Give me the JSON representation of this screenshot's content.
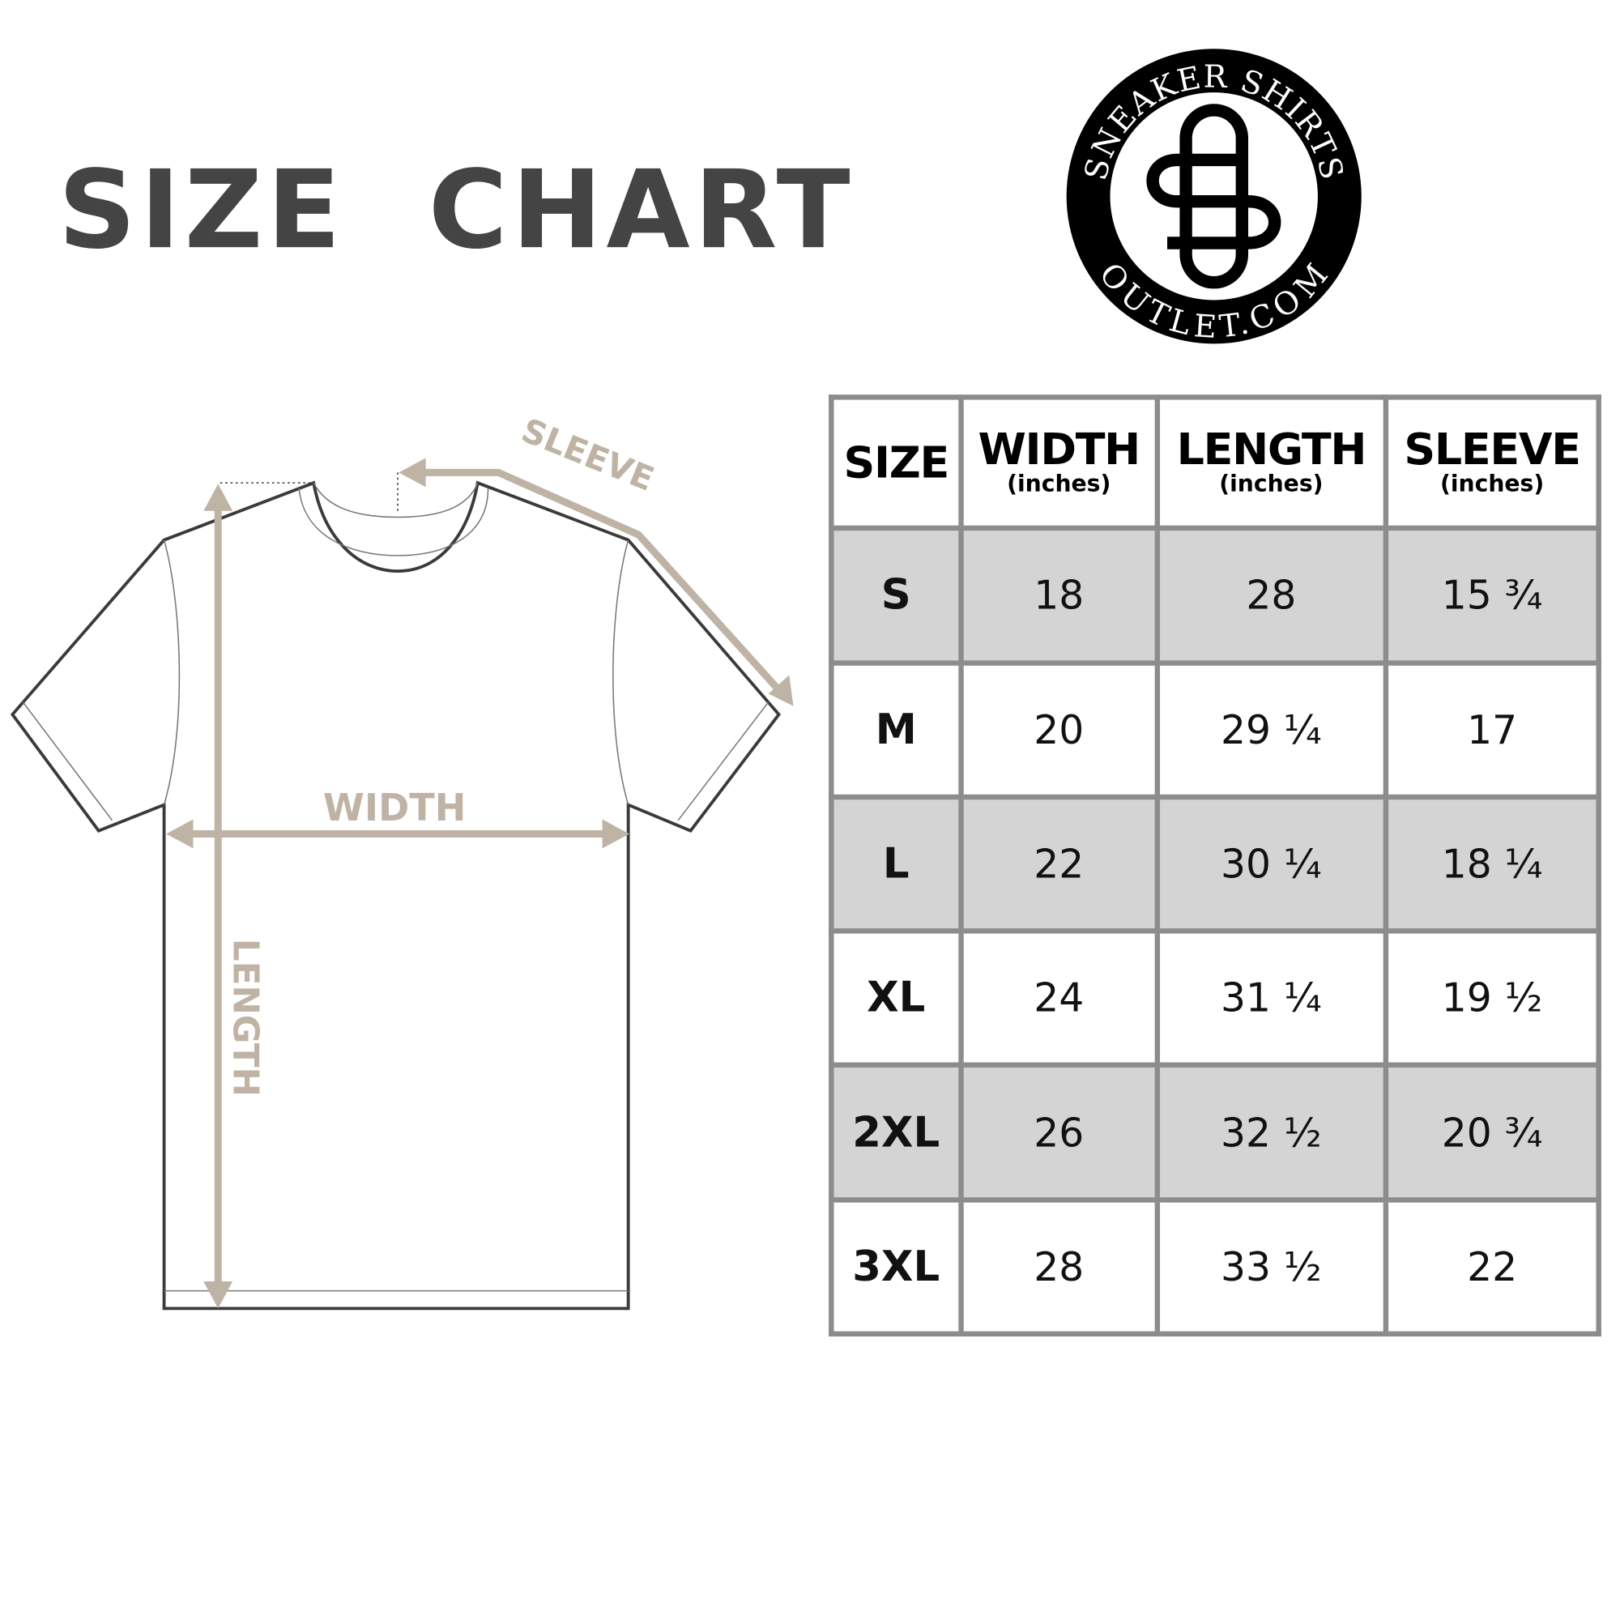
{
  "title": "SIZE  CHART",
  "logo": {
    "top_text": "SNEAKER SHIRTS",
    "bottom_text": "OUTLET.COM",
    "monogram": "SO"
  },
  "diagram": {
    "width_label": "WIDTH",
    "length_label": "LENGTH",
    "sleeve_label": "SLEEVE",
    "arrow_color": "#bfb3a5"
  },
  "table": {
    "headers": [
      {
        "label": "SIZE",
        "unit": ""
      },
      {
        "label": "WIDTH",
        "unit": "(inches)"
      },
      {
        "label": "LENGTH",
        "unit": "(inches)"
      },
      {
        "label": "SLEEVE",
        "unit": "(inches)"
      }
    ],
    "rows": [
      [
        "S",
        "18",
        "28",
        "15 ¾"
      ],
      [
        "M",
        "20",
        "29 ¼",
        "17"
      ],
      [
        "L",
        "22",
        "30 ¼",
        "18 ¼"
      ],
      [
        "XL",
        "24",
        "31 ¼",
        "19 ½"
      ],
      [
        "2XL",
        "26",
        "32 ½",
        "20 ¾"
      ],
      [
        "3XL",
        "28",
        "33 ½",
        "22"
      ]
    ]
  }
}
